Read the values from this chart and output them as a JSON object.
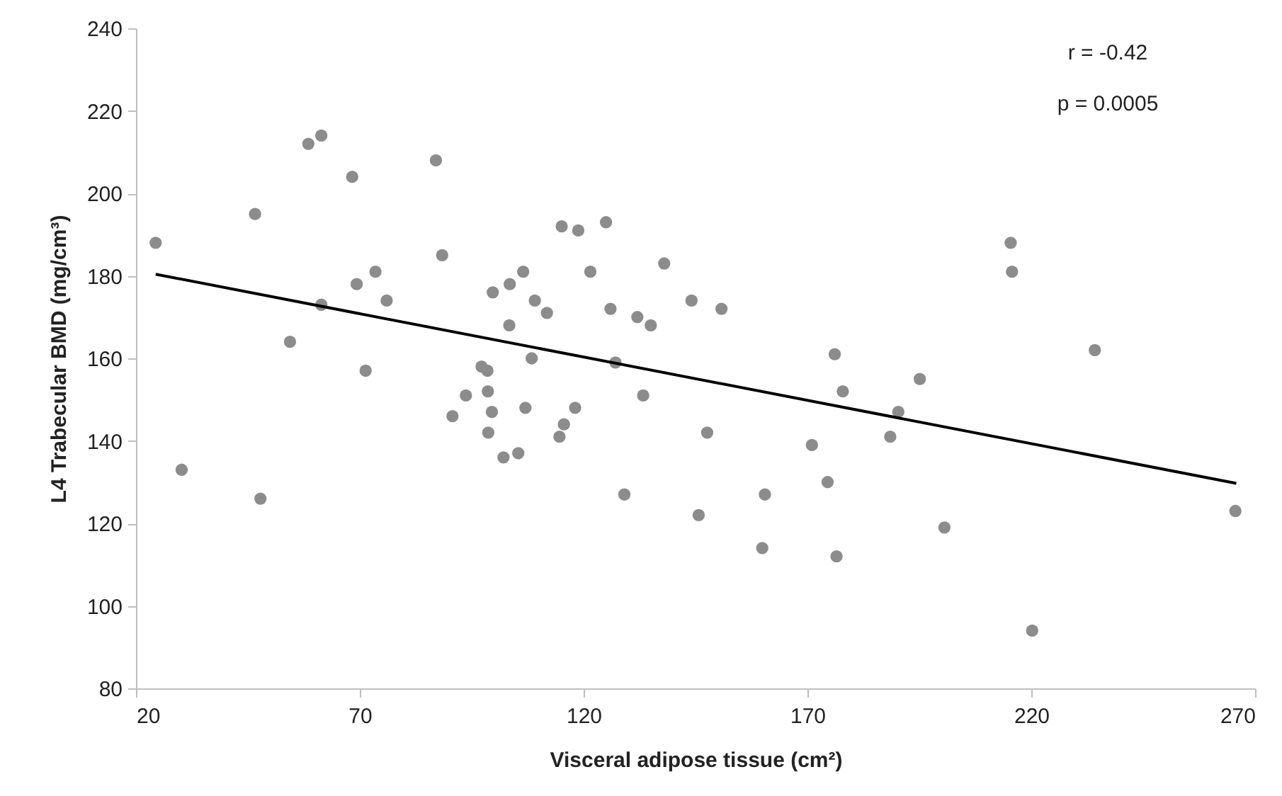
{
  "chart_data": {
    "type": "scatter",
    "xlabel": "Visceral adipose tissue (cm²)",
    "ylabel": "L4 Trabecular BMD (mg/cm³)",
    "annotations": [
      "r = -0.42",
      "p = 0.0005"
    ],
    "xlim": [
      20,
      270
    ],
    "xticks": [
      20,
      70,
      120,
      170,
      220,
      270
    ],
    "ylim": [
      80,
      240
    ],
    "yticks": [
      80,
      100,
      120,
      140,
      160,
      180,
      200,
      220,
      240
    ],
    "grid": false,
    "series": [
      {
        "marker": "circle",
        "color": "#8c8c8c",
        "x": [
          24.4,
          30.2,
          46.6,
          47.8,
          54.4,
          58.5,
          61.4,
          61.4,
          68.3,
          69.3,
          71.3,
          73.5,
          76.0,
          87.0,
          88.4,
          90.7,
          93.7,
          97.2,
          98.5,
          98.6,
          98.7,
          99.5,
          99.7,
          102.1,
          103.5,
          106.5,
          103.4,
          109.1,
          111.8,
          108.4,
          107.0,
          105.4,
          115.1,
          118.8,
          125.0,
          121.5,
          126.0,
          127.1,
          118.1,
          115.6,
          114.6,
          129.1,
          132.0,
          135.0,
          133.3,
          138.0,
          144.1,
          150.8,
          147.6,
          145.7,
          160.5,
          159.9,
          171.0,
          174.5,
          176.1,
          177.9,
          176.5,
          188.5,
          190.3,
          195.1,
          200.6,
          215.4,
          215.7,
          234.2,
          220.2,
          265.6
        ],
        "values": [
          188,
          133,
          195,
          126,
          164,
          212,
          214,
          173,
          204,
          178,
          157,
          181,
          174,
          208,
          185,
          146,
          151,
          158,
          157,
          152,
          142,
          147,
          176,
          136,
          178,
          181,
          168,
          174,
          171,
          160,
          148,
          137,
          192,
          191,
          193,
          181,
          172,
          159,
          148,
          144,
          141,
          127,
          170,
          168,
          151,
          183,
          174,
          172,
          142,
          122,
          127,
          114,
          139,
          130,
          161,
          152,
          112,
          141,
          147,
          155,
          119,
          188,
          181,
          162,
          94,
          123
        ]
      },
      {
        "type": "line",
        "marker": "none",
        "color": "#000000",
        "x": [
          24.4,
          265.8
        ],
        "values": [
          180.4,
          129.7
        ]
      }
    ]
  }
}
